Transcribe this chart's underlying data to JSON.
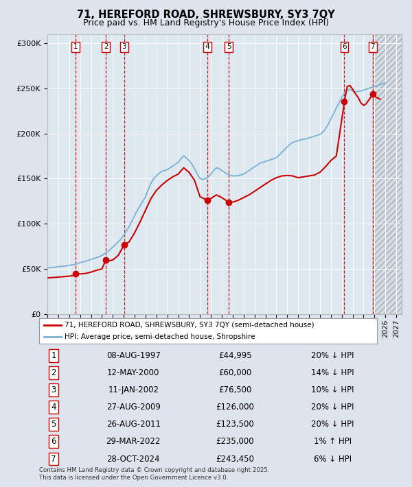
{
  "title1": "71, HEREFORD ROAD, SHREWSBURY, SY3 7QY",
  "title2": "Price paid vs. HM Land Registry's House Price Index (HPI)",
  "ylim": [
    0,
    310000
  ],
  "xlim_start": 1995.0,
  "xlim_end": 2027.5,
  "yticks": [
    0,
    50000,
    100000,
    150000,
    200000,
    250000,
    300000
  ],
  "ytick_labels": [
    "£0",
    "£50K",
    "£100K",
    "£150K",
    "£200K",
    "£250K",
    "£300K"
  ],
  "fig_bg_color": "#dde4ed",
  "plot_bg_color": "#dde8f0",
  "grid_color": "#ffffff",
  "sale_dates_x": [
    1997.6,
    2000.36,
    2002.03,
    2009.65,
    2011.65,
    2022.24,
    2024.83
  ],
  "sale_prices_y": [
    44995,
    60000,
    76500,
    126000,
    123500,
    235000,
    243450
  ],
  "sale_labels": [
    "1",
    "2",
    "3",
    "4",
    "5",
    "6",
    "7"
  ],
  "vline_color": "#cc0000",
  "house_line_color": "#cc0000",
  "hpi_line_color": "#7ab0d4",
  "dot_color": "#cc0000",
  "legend_entries": [
    "71, HEREFORD ROAD, SHREWSBURY, SY3 7QY (semi-detached house)",
    "HPI: Average price, semi-detached house, Shropshire"
  ],
  "table_data": [
    [
      "1",
      "08-AUG-1997",
      "£44,995",
      "20% ↓ HPI"
    ],
    [
      "2",
      "12-MAY-2000",
      "£60,000",
      "14% ↓ HPI"
    ],
    [
      "3",
      "11-JAN-2002",
      "£76,500",
      "10% ↓ HPI"
    ],
    [
      "4",
      "27-AUG-2009",
      "£126,000",
      "20% ↓ HPI"
    ],
    [
      "5",
      "26-AUG-2011",
      "£123,500",
      "20% ↓ HPI"
    ],
    [
      "6",
      "29-MAR-2022",
      "£235,000",
      "1% ↑ HPI"
    ],
    [
      "7",
      "28-OCT-2024",
      "£243,450",
      "6% ↓ HPI"
    ]
  ],
  "footer": "Contains HM Land Registry data © Crown copyright and database right 2025.\nThis data is licensed under the Open Government Licence v3.0.",
  "future_start": 2024.83,
  "hpi_series": [
    [
      1995.0,
      51000
    ],
    [
      1995.25,
      51500
    ],
    [
      1995.5,
      51800
    ],
    [
      1995.75,
      52000
    ],
    [
      1996.0,
      52500
    ],
    [
      1996.25,
      52800
    ],
    [
      1996.5,
      53000
    ],
    [
      1996.75,
      53500
    ],
    [
      1997.0,
      54000
    ],
    [
      1997.25,
      54500
    ],
    [
      1997.5,
      55000
    ],
    [
      1997.75,
      55800
    ],
    [
      1998.0,
      57000
    ],
    [
      1998.25,
      57800
    ],
    [
      1998.5,
      58500
    ],
    [
      1998.75,
      59500
    ],
    [
      1999.0,
      60500
    ],
    [
      1999.25,
      61500
    ],
    [
      1999.5,
      62500
    ],
    [
      1999.75,
      63500
    ],
    [
      2000.0,
      65000
    ],
    [
      2000.25,
      67000
    ],
    [
      2000.5,
      69000
    ],
    [
      2000.75,
      71500
    ],
    [
      2001.0,
      74000
    ],
    [
      2001.25,
      77000
    ],
    [
      2001.5,
      80000
    ],
    [
      2001.75,
      83000
    ],
    [
      2002.0,
      87000
    ],
    [
      2002.25,
      92000
    ],
    [
      2002.5,
      97000
    ],
    [
      2002.75,
      103000
    ],
    [
      2003.0,
      109000
    ],
    [
      2003.25,
      115000
    ],
    [
      2003.5,
      120000
    ],
    [
      2003.75,
      125000
    ],
    [
      2004.0,
      130000
    ],
    [
      2004.25,
      138000
    ],
    [
      2004.5,
      145000
    ],
    [
      2004.75,
      150000
    ],
    [
      2005.0,
      153000
    ],
    [
      2005.25,
      156000
    ],
    [
      2005.5,
      158000
    ],
    [
      2005.75,
      159000
    ],
    [
      2006.0,
      160000
    ],
    [
      2006.25,
      162000
    ],
    [
      2006.5,
      164000
    ],
    [
      2006.75,
      166000
    ],
    [
      2007.0,
      168000
    ],
    [
      2007.25,
      172000
    ],
    [
      2007.5,
      175000
    ],
    [
      2007.75,
      173000
    ],
    [
      2008.0,
      170000
    ],
    [
      2008.25,
      166000
    ],
    [
      2008.5,
      161000
    ],
    [
      2008.75,
      155000
    ],
    [
      2009.0,
      150000
    ],
    [
      2009.25,
      149000
    ],
    [
      2009.5,
      150000
    ],
    [
      2009.75,
      152000
    ],
    [
      2010.0,
      155000
    ],
    [
      2010.25,
      159000
    ],
    [
      2010.5,
      162000
    ],
    [
      2010.75,
      161000
    ],
    [
      2011.0,
      159000
    ],
    [
      2011.25,
      157000
    ],
    [
      2011.5,
      155000
    ],
    [
      2011.75,
      154000
    ],
    [
      2012.0,
      153000
    ],
    [
      2012.25,
      153000
    ],
    [
      2012.5,
      153500
    ],
    [
      2012.75,
      154000
    ],
    [
      2013.0,
      155000
    ],
    [
      2013.25,
      157000
    ],
    [
      2013.5,
      159000
    ],
    [
      2013.75,
      161000
    ],
    [
      2014.0,
      163000
    ],
    [
      2014.25,
      165000
    ],
    [
      2014.5,
      167000
    ],
    [
      2014.75,
      168000
    ],
    [
      2015.0,
      169000
    ],
    [
      2015.25,
      170000
    ],
    [
      2015.5,
      171000
    ],
    [
      2015.75,
      172000
    ],
    [
      2016.0,
      173000
    ],
    [
      2016.25,
      176000
    ],
    [
      2016.5,
      179000
    ],
    [
      2016.75,
      182000
    ],
    [
      2017.0,
      185000
    ],
    [
      2017.25,
      188000
    ],
    [
      2017.5,
      190000
    ],
    [
      2017.75,
      191000
    ],
    [
      2018.0,
      192000
    ],
    [
      2018.25,
      193000
    ],
    [
      2018.5,
      193500
    ],
    [
      2018.75,
      194000
    ],
    [
      2019.0,
      195000
    ],
    [
      2019.25,
      196000
    ],
    [
      2019.5,
      197000
    ],
    [
      2019.75,
      198000
    ],
    [
      2020.0,
      199000
    ],
    [
      2020.25,
      201000
    ],
    [
      2020.5,
      205000
    ],
    [
      2020.75,
      210000
    ],
    [
      2021.0,
      216000
    ],
    [
      2021.25,
      222000
    ],
    [
      2021.5,
      228000
    ],
    [
      2021.75,
      234000
    ],
    [
      2022.0,
      240000
    ],
    [
      2022.25,
      245000
    ],
    [
      2022.5,
      248000
    ],
    [
      2022.75,
      249000
    ],
    [
      2023.0,
      247000
    ],
    [
      2023.25,
      246000
    ],
    [
      2023.5,
      246500
    ],
    [
      2023.75,
      247000
    ],
    [
      2024.0,
      248000
    ],
    [
      2024.25,
      249000
    ],
    [
      2024.5,
      250000
    ],
    [
      2024.75,
      251000
    ],
    [
      2025.0,
      252000
    ],
    [
      2025.5,
      254000
    ],
    [
      2026.0,
      256000
    ]
  ],
  "house_series": [
    [
      1995.0,
      40000
    ],
    [
      1995.5,
      40500
    ],
    [
      1996.0,
      41000
    ],
    [
      1996.5,
      41500
    ],
    [
      1997.0,
      42000
    ],
    [
      1997.5,
      43000
    ],
    [
      1997.6,
      44995
    ],
    [
      1998.0,
      44500
    ],
    [
      1998.5,
      45000
    ],
    [
      1999.0,
      46500
    ],
    [
      1999.5,
      48500
    ],
    [
      2000.0,
      50000
    ],
    [
      2000.36,
      60000
    ],
    [
      2000.7,
      59000
    ],
    [
      2001.0,
      60000
    ],
    [
      2001.5,
      65000
    ],
    [
      2002.03,
      76500
    ],
    [
      2002.5,
      80000
    ],
    [
      2003.0,
      90000
    ],
    [
      2003.5,
      102000
    ],
    [
      2004.0,
      115000
    ],
    [
      2004.5,
      128000
    ],
    [
      2005.0,
      137000
    ],
    [
      2005.5,
      143000
    ],
    [
      2006.0,
      148000
    ],
    [
      2006.5,
      152000
    ],
    [
      2007.0,
      155000
    ],
    [
      2007.5,
      162000
    ],
    [
      2008.0,
      157000
    ],
    [
      2008.5,
      148000
    ],
    [
      2009.0,
      130000
    ],
    [
      2009.5,
      127000
    ],
    [
      2009.65,
      126000
    ],
    [
      2010.0,
      128000
    ],
    [
      2010.5,
      132000
    ],
    [
      2011.0,
      129000
    ],
    [
      2011.5,
      125000
    ],
    [
      2011.65,
      123500
    ],
    [
      2012.0,
      124000
    ],
    [
      2012.5,
      126000
    ],
    [
      2013.0,
      129000
    ],
    [
      2013.5,
      132000
    ],
    [
      2014.0,
      136000
    ],
    [
      2014.5,
      140000
    ],
    [
      2015.0,
      144000
    ],
    [
      2015.5,
      148000
    ],
    [
      2016.0,
      151000
    ],
    [
      2016.5,
      153000
    ],
    [
      2017.0,
      153500
    ],
    [
      2017.5,
      153000
    ],
    [
      2018.0,
      151000
    ],
    [
      2018.5,
      152000
    ],
    [
      2019.0,
      153000
    ],
    [
      2019.5,
      154000
    ],
    [
      2020.0,
      157000
    ],
    [
      2020.5,
      163000
    ],
    [
      2021.0,
      170000
    ],
    [
      2021.5,
      175000
    ],
    [
      2022.0,
      215000
    ],
    [
      2022.24,
      235000
    ],
    [
      2022.5,
      252000
    ],
    [
      2022.75,
      253000
    ],
    [
      2023.0,
      249000
    ],
    [
      2023.25,
      244000
    ],
    [
      2023.5,
      240000
    ],
    [
      2023.75,
      234000
    ],
    [
      2024.0,
      231000
    ],
    [
      2024.25,
      233000
    ],
    [
      2024.6,
      239000
    ],
    [
      2024.83,
      243450
    ],
    [
      2025.0,
      241000
    ],
    [
      2025.5,
      238000
    ]
  ]
}
